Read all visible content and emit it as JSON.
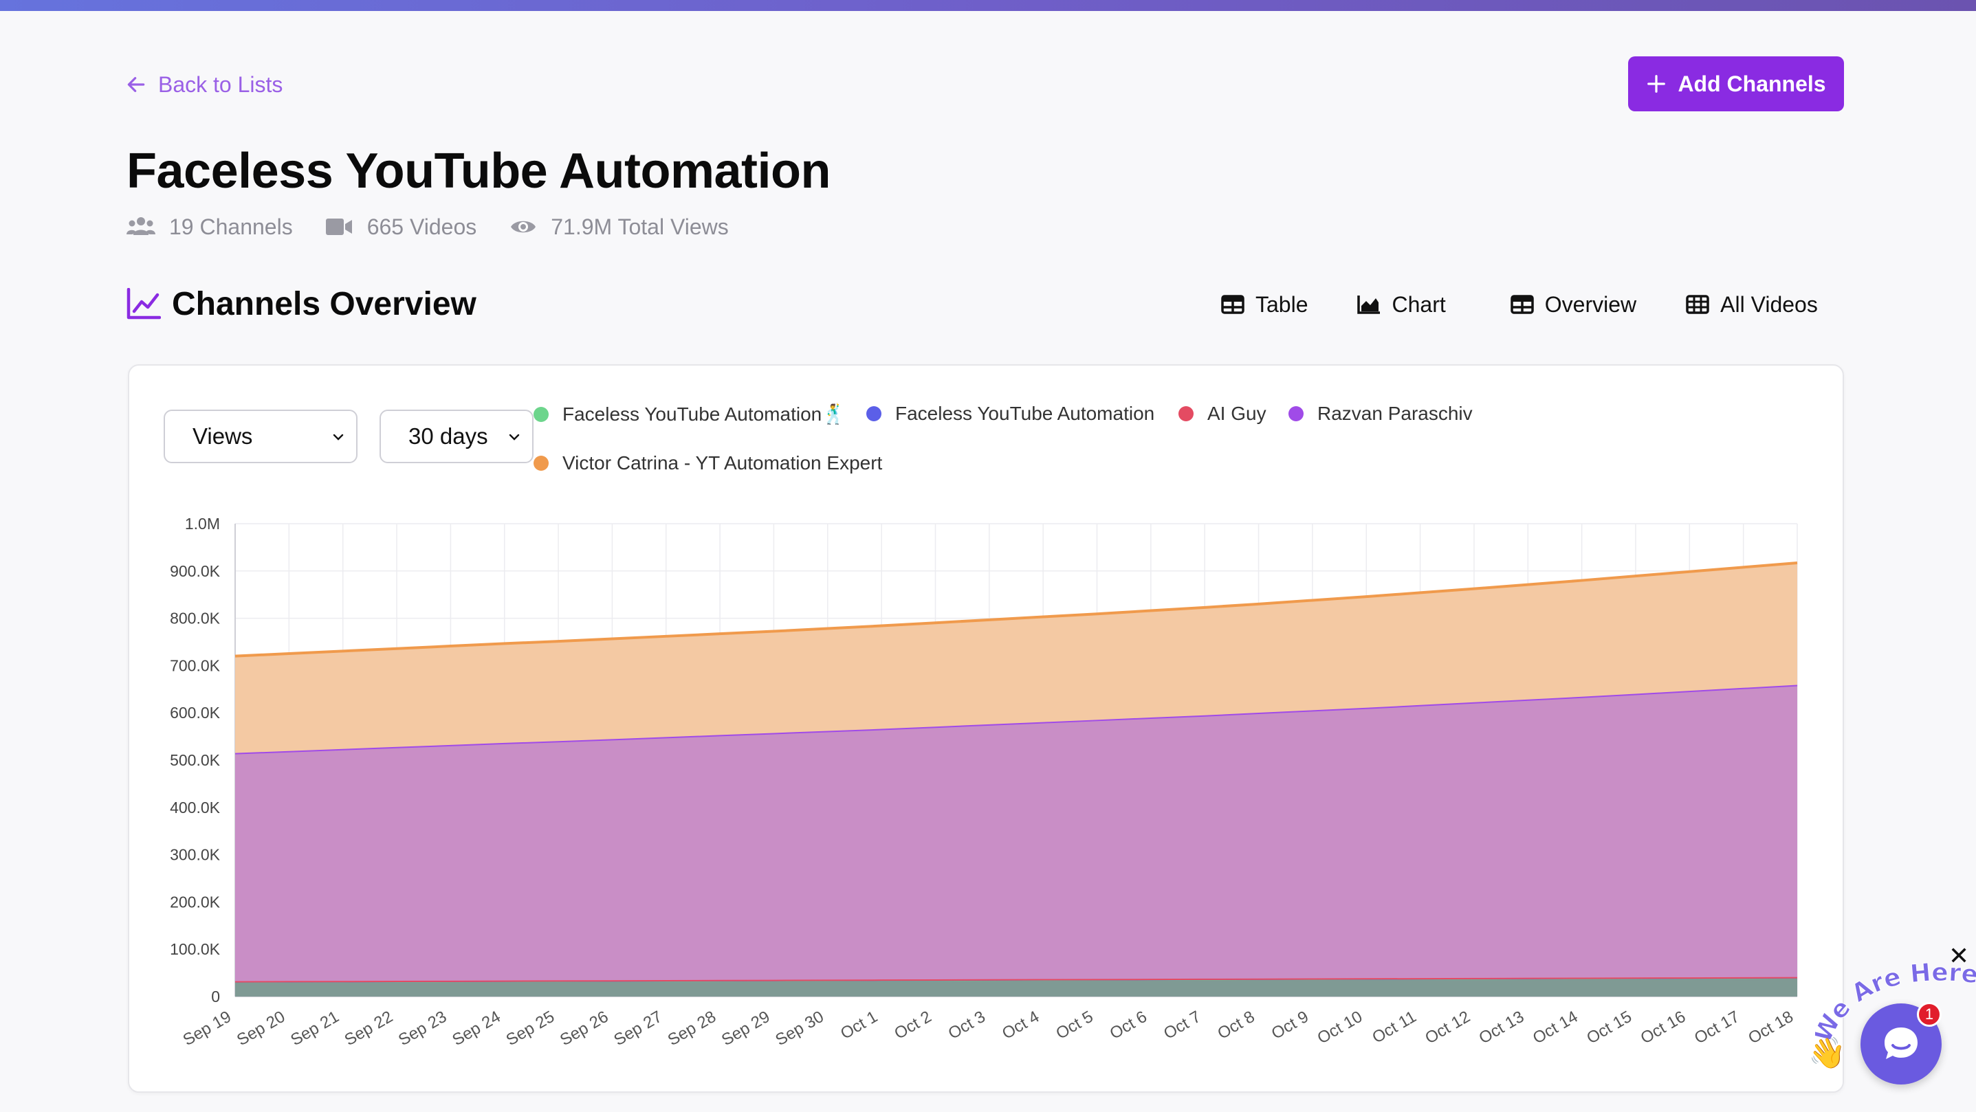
{
  "nav": {
    "back_label": "Back to Lists"
  },
  "actions": {
    "add_channels_label": "Add Channels"
  },
  "page": {
    "title": "Faceless YouTube Automation",
    "stats": {
      "channels": "19 Channels",
      "videos": "665 Videos",
      "views": "71.9M Total Views"
    }
  },
  "section": {
    "title": "Channels Overview",
    "tabs": [
      {
        "label": "Table",
        "icon": "table-icon"
      },
      {
        "label": "Chart",
        "icon": "area-chart-icon"
      },
      {
        "label": "Overview",
        "icon": "grid-icon"
      },
      {
        "label": "All Videos",
        "icon": "grid-icon"
      }
    ]
  },
  "filters": {
    "metric": "Views",
    "range": "30 days"
  },
  "colors": {
    "accent": "#8a2be2",
    "link": "#9a60e6",
    "series_green": "#6dd58c",
    "series_blue": "#5b5fe8",
    "series_red": "#e44b62",
    "series_purple": "#a04be8",
    "series_orange": "#f09a4c"
  },
  "chart_data": {
    "type": "area",
    "stacked": true,
    "legend_position": "top",
    "grid": true,
    "categories": [
      "Sep 19",
      "Sep 20",
      "Sep 21",
      "Sep 22",
      "Sep 23",
      "Sep 24",
      "Sep 25",
      "Sep 26",
      "Sep 27",
      "Sep 28",
      "Sep 29",
      "Sep 30",
      "Oct 1",
      "Oct 2",
      "Oct 3",
      "Oct 4",
      "Oct 5",
      "Oct 6",
      "Oct 7",
      "Oct 8",
      "Oct 9",
      "Oct 10",
      "Oct 11",
      "Oct 12",
      "Oct 13",
      "Oct 14",
      "Oct 15",
      "Oct 16",
      "Oct 17",
      "Oct 18"
    ],
    "y_ticks": [
      "0",
      "100.0K",
      "200.0K",
      "300.0K",
      "400.0K",
      "500.0K",
      "600.0K",
      "700.0K",
      "800.0K",
      "900.0K",
      "1.0M"
    ],
    "ylim": [
      0,
      1000000
    ],
    "series": [
      {
        "name": "Faceless YouTube Automation🕺",
        "color": "#6dd58c",
        "values": [
          32000,
          32300,
          32600,
          32900,
          33200,
          33500,
          33800,
          34100,
          34400,
          34700,
          35000,
          35300,
          35600,
          35900,
          36200,
          36500,
          36800,
          37100,
          37400,
          37700,
          38000,
          38300,
          38600,
          38900,
          39200,
          39500,
          39800,
          40100,
          40400,
          40700
        ]
      },
      {
        "name": "Faceless YouTube Automation",
        "color": "#5b5fe8",
        "values": [
          300,
          300,
          300,
          300,
          300,
          300,
          300,
          300,
          300,
          300,
          300,
          300,
          300,
          300,
          300,
          300,
          300,
          300,
          300,
          300,
          300,
          300,
          300,
          300,
          300,
          300,
          300,
          300,
          300,
          300
        ]
      },
      {
        "name": "AI Guy",
        "color": "#e44b62",
        "values": [
          200,
          200,
          200,
          200,
          200,
          200,
          200,
          200,
          200,
          200,
          200,
          200,
          200,
          200,
          200,
          200,
          200,
          200,
          200,
          200,
          200,
          200,
          200,
          200,
          200,
          200,
          200,
          200,
          200,
          200
        ]
      },
      {
        "name": "Razvan Paraschiv",
        "color": "#a04be8",
        "values": [
          482500,
          486500,
          490500,
          494500,
          498500,
          502500,
          506000,
          510000,
          514000,
          518000,
          522000,
          526000,
          530000,
          534500,
          539000,
          543500,
          548000,
          552500,
          557000,
          562000,
          567000,
          572000,
          577500,
          583000,
          588500,
          594000,
          600000,
          606000,
          612000,
          618000
        ]
      },
      {
        "name": "Victor Catrina - YT Automation Expert",
        "color": "#f09a4c",
        "values": [
          205000,
          206000,
          207000,
          208000,
          209000,
          210000,
          211000,
          212000,
          213000,
          214000,
          215000,
          216500,
          218000,
          219500,
          221000,
          222500,
          224000,
          226000,
          228000,
          230000,
          232500,
          235000,
          237500,
          240000,
          243000,
          246000,
          249000,
          252000,
          255000,
          258000
        ]
      }
    ]
  },
  "chat": {
    "label": "We Are Here!",
    "badge": "1"
  }
}
